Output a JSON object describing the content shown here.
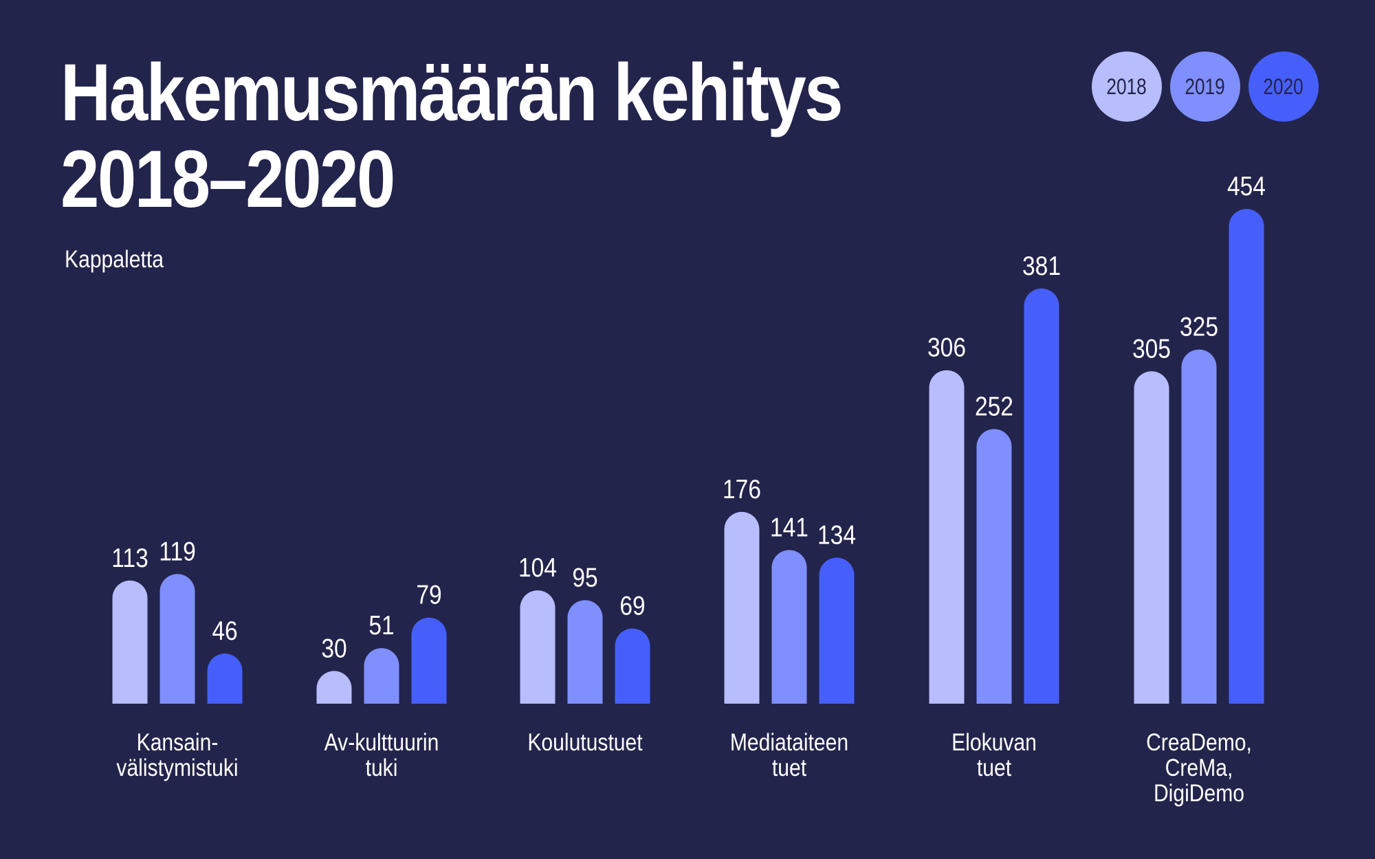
{
  "title": {
    "line1": "Hakemusmäärän kehitys",
    "line2": "2018–2020"
  },
  "unit": "Kappaletta",
  "legend": [
    {
      "label": "2018",
      "color": "#b7bdfd"
    },
    {
      "label": "2019",
      "color": "#7f8ffd"
    },
    {
      "label": "2020",
      "color": "#465ffb"
    }
  ],
  "colors": {
    "background": "#23244b",
    "text": "#ffffff"
  },
  "chart_data": {
    "type": "bar",
    "ylim": [
      0,
      454
    ],
    "grid": false,
    "legend_placement": "top-right",
    "categories": [
      [
        "Kansain-",
        "välistymistuki"
      ],
      [
        "Av-kulttuurin",
        "tuki"
      ],
      [
        "Koulutustuet"
      ],
      [
        "Mediataiteen",
        "tuet"
      ],
      [
        "Elokuvan",
        "tuet"
      ],
      [
        "CreaDemo,",
        "CreMa,",
        "DigiDemo"
      ]
    ],
    "series": [
      {
        "name": "2018",
        "values": [
          113,
          30,
          104,
          176,
          306,
          305
        ]
      },
      {
        "name": "2019",
        "values": [
          119,
          51,
          95,
          141,
          252,
          325
        ]
      },
      {
        "name": "2020",
        "values": [
          46,
          79,
          69,
          134,
          381,
          454
        ]
      }
    ]
  }
}
